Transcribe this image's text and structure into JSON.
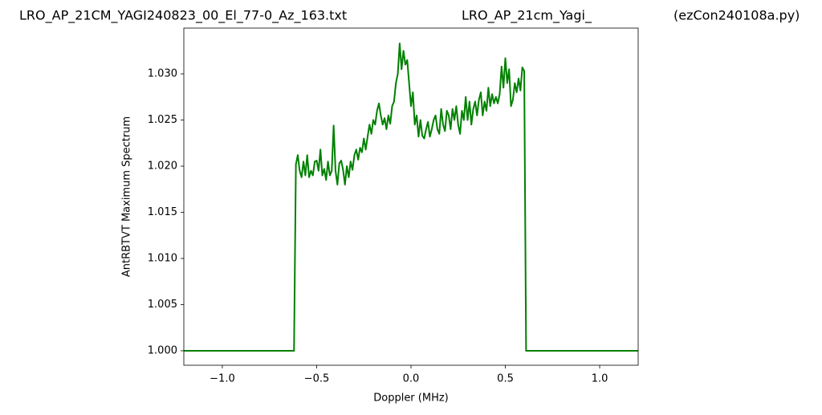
{
  "chart_data": {
    "type": "line",
    "title_left": "LRO_AP_21CM_YAGI240823_00_El_77-0_Az_163.txt",
    "title_center": "LRO_AP_21cm_Yagi_",
    "title_right": "(ezCon240108a.py)",
    "xlabel": "Doppler (MHz)",
    "ylabel": "AntRBTVT Maximum Spectrum",
    "color": "#008000",
    "xlim": [
      -1.204,
      1.204
    ],
    "ylim": [
      0.99843,
      1.03496
    ],
    "xticks": [
      {
        "value": -1.0,
        "label": "−1.0"
      },
      {
        "value": -0.5,
        "label": "−0.5"
      },
      {
        "value": 0,
        "label": "0.0"
      },
      0.5,
      {
        "value": 1.0,
        "label": "1.0"
      }
    ],
    "yticks": [
      {
        "value": 1.0,
        "label": "1.000"
      },
      1.005,
      {
        "value": 1.01,
        "label": "1.010"
      },
      1.015,
      {
        "value": 1.02,
        "label": "1.020"
      },
      1.025,
      {
        "value": 1.03,
        "label": "1.030"
      }
    ],
    "x": [
      -1.204,
      -0.62,
      -0.61,
      -0.6,
      -0.59,
      -0.58,
      -0.57,
      -0.56,
      -0.55,
      -0.54,
      -0.53,
      -0.52,
      -0.51,
      -0.5,
      -0.49,
      -0.48,
      -0.47,
      -0.46,
      -0.45,
      -0.44,
      -0.43,
      -0.42,
      -0.41,
      -0.4,
      -0.39,
      -0.38,
      -0.37,
      -0.36,
      -0.35,
      -0.34,
      -0.33,
      -0.32,
      -0.31,
      -0.3,
      -0.29,
      -0.28,
      -0.27,
      -0.26,
      -0.25,
      -0.24,
      -0.23,
      -0.22,
      -0.21,
      -0.2,
      -0.19,
      -0.18,
      -0.17,
      -0.16,
      -0.15,
      -0.14,
      -0.13,
      -0.12,
      -0.11,
      -0.1,
      -0.09,
      -0.08,
      -0.07,
      -0.06,
      -0.05,
      -0.04,
      -0.03,
      -0.02,
      -0.01,
      0.0,
      0.01,
      0.02,
      0.03,
      0.04,
      0.05,
      0.06,
      0.07,
      0.08,
      0.09,
      0.1,
      0.11,
      0.12,
      0.13,
      0.14,
      0.15,
      0.16,
      0.17,
      0.18,
      0.19,
      0.2,
      0.21,
      0.22,
      0.23,
      0.24,
      0.25,
      0.26,
      0.27,
      0.28,
      0.29,
      0.3,
      0.31,
      0.32,
      0.33,
      0.34,
      0.35,
      0.36,
      0.37,
      0.38,
      0.39,
      0.4,
      0.41,
      0.42,
      0.43,
      0.44,
      0.45,
      0.46,
      0.47,
      0.48,
      0.49,
      0.5,
      0.51,
      0.52,
      0.53,
      0.54,
      0.55,
      0.56,
      0.57,
      0.58,
      0.59,
      0.6,
      0.61,
      1.204
    ],
    "values": [
      1.0,
      1.0,
      1.0202,
      1.0212,
      1.0195,
      1.0188,
      1.0205,
      1.019,
      1.0212,
      1.0188,
      1.0195,
      1.019,
      1.0205,
      1.0206,
      1.0195,
      1.0218,
      1.019,
      1.0197,
      1.0185,
      1.0205,
      1.019,
      1.0195,
      1.0244,
      1.0195,
      1.018,
      1.0203,
      1.0206,
      1.0196,
      1.018,
      1.02,
      1.0188,
      1.0205,
      1.0196,
      1.0212,
      1.0218,
      1.0207,
      1.022,
      1.0215,
      1.023,
      1.0218,
      1.0232,
      1.0245,
      1.0235,
      1.025,
      1.0245,
      1.026,
      1.0268,
      1.0255,
      1.0245,
      1.0252,
      1.024,
      1.0255,
      1.0246,
      1.0265,
      1.027,
      1.029,
      1.03,
      1.0333,
      1.0305,
      1.0325,
      1.031,
      1.0315,
      1.029,
      1.0265,
      1.028,
      1.0245,
      1.0255,
      1.0232,
      1.025,
      1.0233,
      1.023,
      1.024,
      1.0248,
      1.0232,
      1.024,
      1.025,
      1.0255,
      1.024,
      1.0235,
      1.0262,
      1.0245,
      1.0238,
      1.026,
      1.0255,
      1.024,
      1.0262,
      1.025,
      1.0265,
      1.0245,
      1.0235,
      1.026,
      1.025,
      1.0275,
      1.025,
      1.027,
      1.0245,
      1.0262,
      1.027,
      1.0255,
      1.0272,
      1.028,
      1.0255,
      1.027,
      1.026,
      1.0285,
      1.0265,
      1.0278,
      1.0268,
      1.0275,
      1.0268,
      1.0278,
      1.0308,
      1.0285,
      1.0317,
      1.029,
      1.0305,
      1.0265,
      1.0272,
      1.029,
      1.028,
      1.0295,
      1.0282,
      1.0307,
      1.0303,
      1.0,
      1.0
    ]
  }
}
